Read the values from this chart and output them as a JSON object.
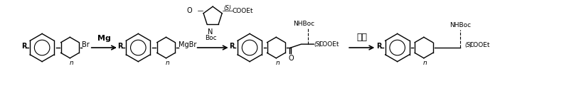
{
  "bg_color": "#ffffff",
  "fig_width": 8.0,
  "fig_height": 1.35,
  "dpi": 100,
  "arrow_color": "#000000",
  "line_color": "#000000",
  "text_color": "#000000",
  "reagent1": "Mg",
  "reagent3": "还原",
  "label_R": "R",
  "label_n": "n",
  "label_Br": "Br",
  "label_MgBr": "MgBr",
  "label_COOEt": "COOEt",
  "label_NHBoc": "NHBoc",
  "label_Boc": "Boc",
  "label_S": "(S)",
  "label_O": "O",
  "label_N": "N"
}
